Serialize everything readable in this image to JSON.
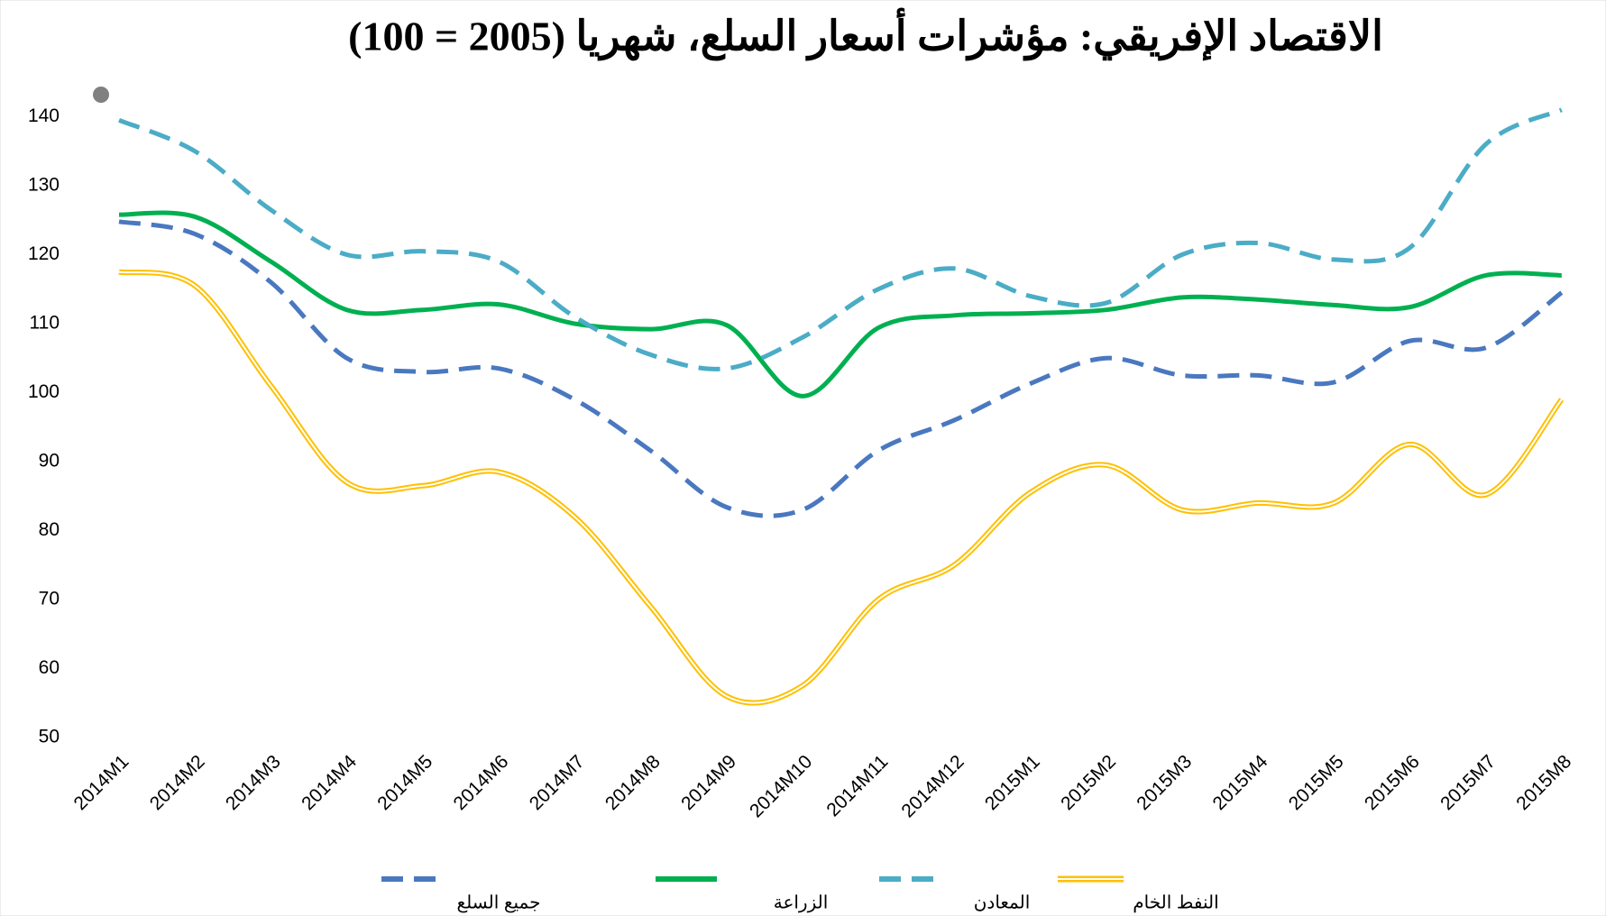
{
  "chart_data": {
    "type": "line",
    "title": "الاقتصاد الإفريقي: مؤشرات أسعار السلع، شهريا (2005 = 100)",
    "categories": [
      "2014M1",
      "2014M2",
      "2014M3",
      "2014M4",
      "2014M5",
      "2014M6",
      "2014M7",
      "2014M8",
      "2014M9",
      "2014M10",
      "2014M11",
      "2014M12",
      "2015M1",
      "2015M2",
      "2015M3",
      "2015M4",
      "2015M5",
      "2015M6",
      "2015M7",
      "2015M8"
    ],
    "series": [
      {
        "name": "جميع السلع",
        "color": "#4a78c0",
        "dashed": true,
        "double": false,
        "values": [
          124.8,
          123,
          116,
          105,
          103,
          103.5,
          99,
          91.6,
          83.4,
          83,
          91.6,
          96,
          101.3,
          105,
          102.5,
          102.5,
          101.5,
          107.5,
          106.5,
          114.5
        ]
      },
      {
        "name": "الزراعة",
        "color": "#00b050",
        "dashed": false,
        "double": false,
        "values": [
          125.8,
          125.5,
          119,
          112,
          112,
          112.8,
          110,
          109.2,
          109.8,
          99.5,
          109.4,
          111.2,
          111.5,
          112,
          113.8,
          113.5,
          112.7,
          112.4,
          117,
          117
        ]
      },
      {
        "name": "المعادن",
        "color": "#4bacc6",
        "dashed": true,
        "double": false,
        "values": [
          139.5,
          135,
          126.5,
          120,
          120.5,
          119,
          111,
          105.5,
          103.5,
          108,
          115,
          118,
          114,
          113,
          120,
          121.7,
          119.3,
          121,
          136,
          141
        ]
      },
      {
        "name": "النفط الخام",
        "color": "#ffc000",
        "dashed": false,
        "double": true,
        "values": [
          117.5,
          115.5,
          101,
          87,
          86.5,
          88.5,
          82,
          69,
          56,
          57.5,
          70,
          75,
          85.5,
          89.5,
          83,
          84,
          84,
          92.5,
          85.2,
          99
        ]
      }
    ],
    "ylim": [
      50,
      140
    ],
    "yticks": [
      50,
      60,
      70,
      80,
      90,
      100,
      110,
      120,
      130,
      140
    ],
    "grid": false
  }
}
